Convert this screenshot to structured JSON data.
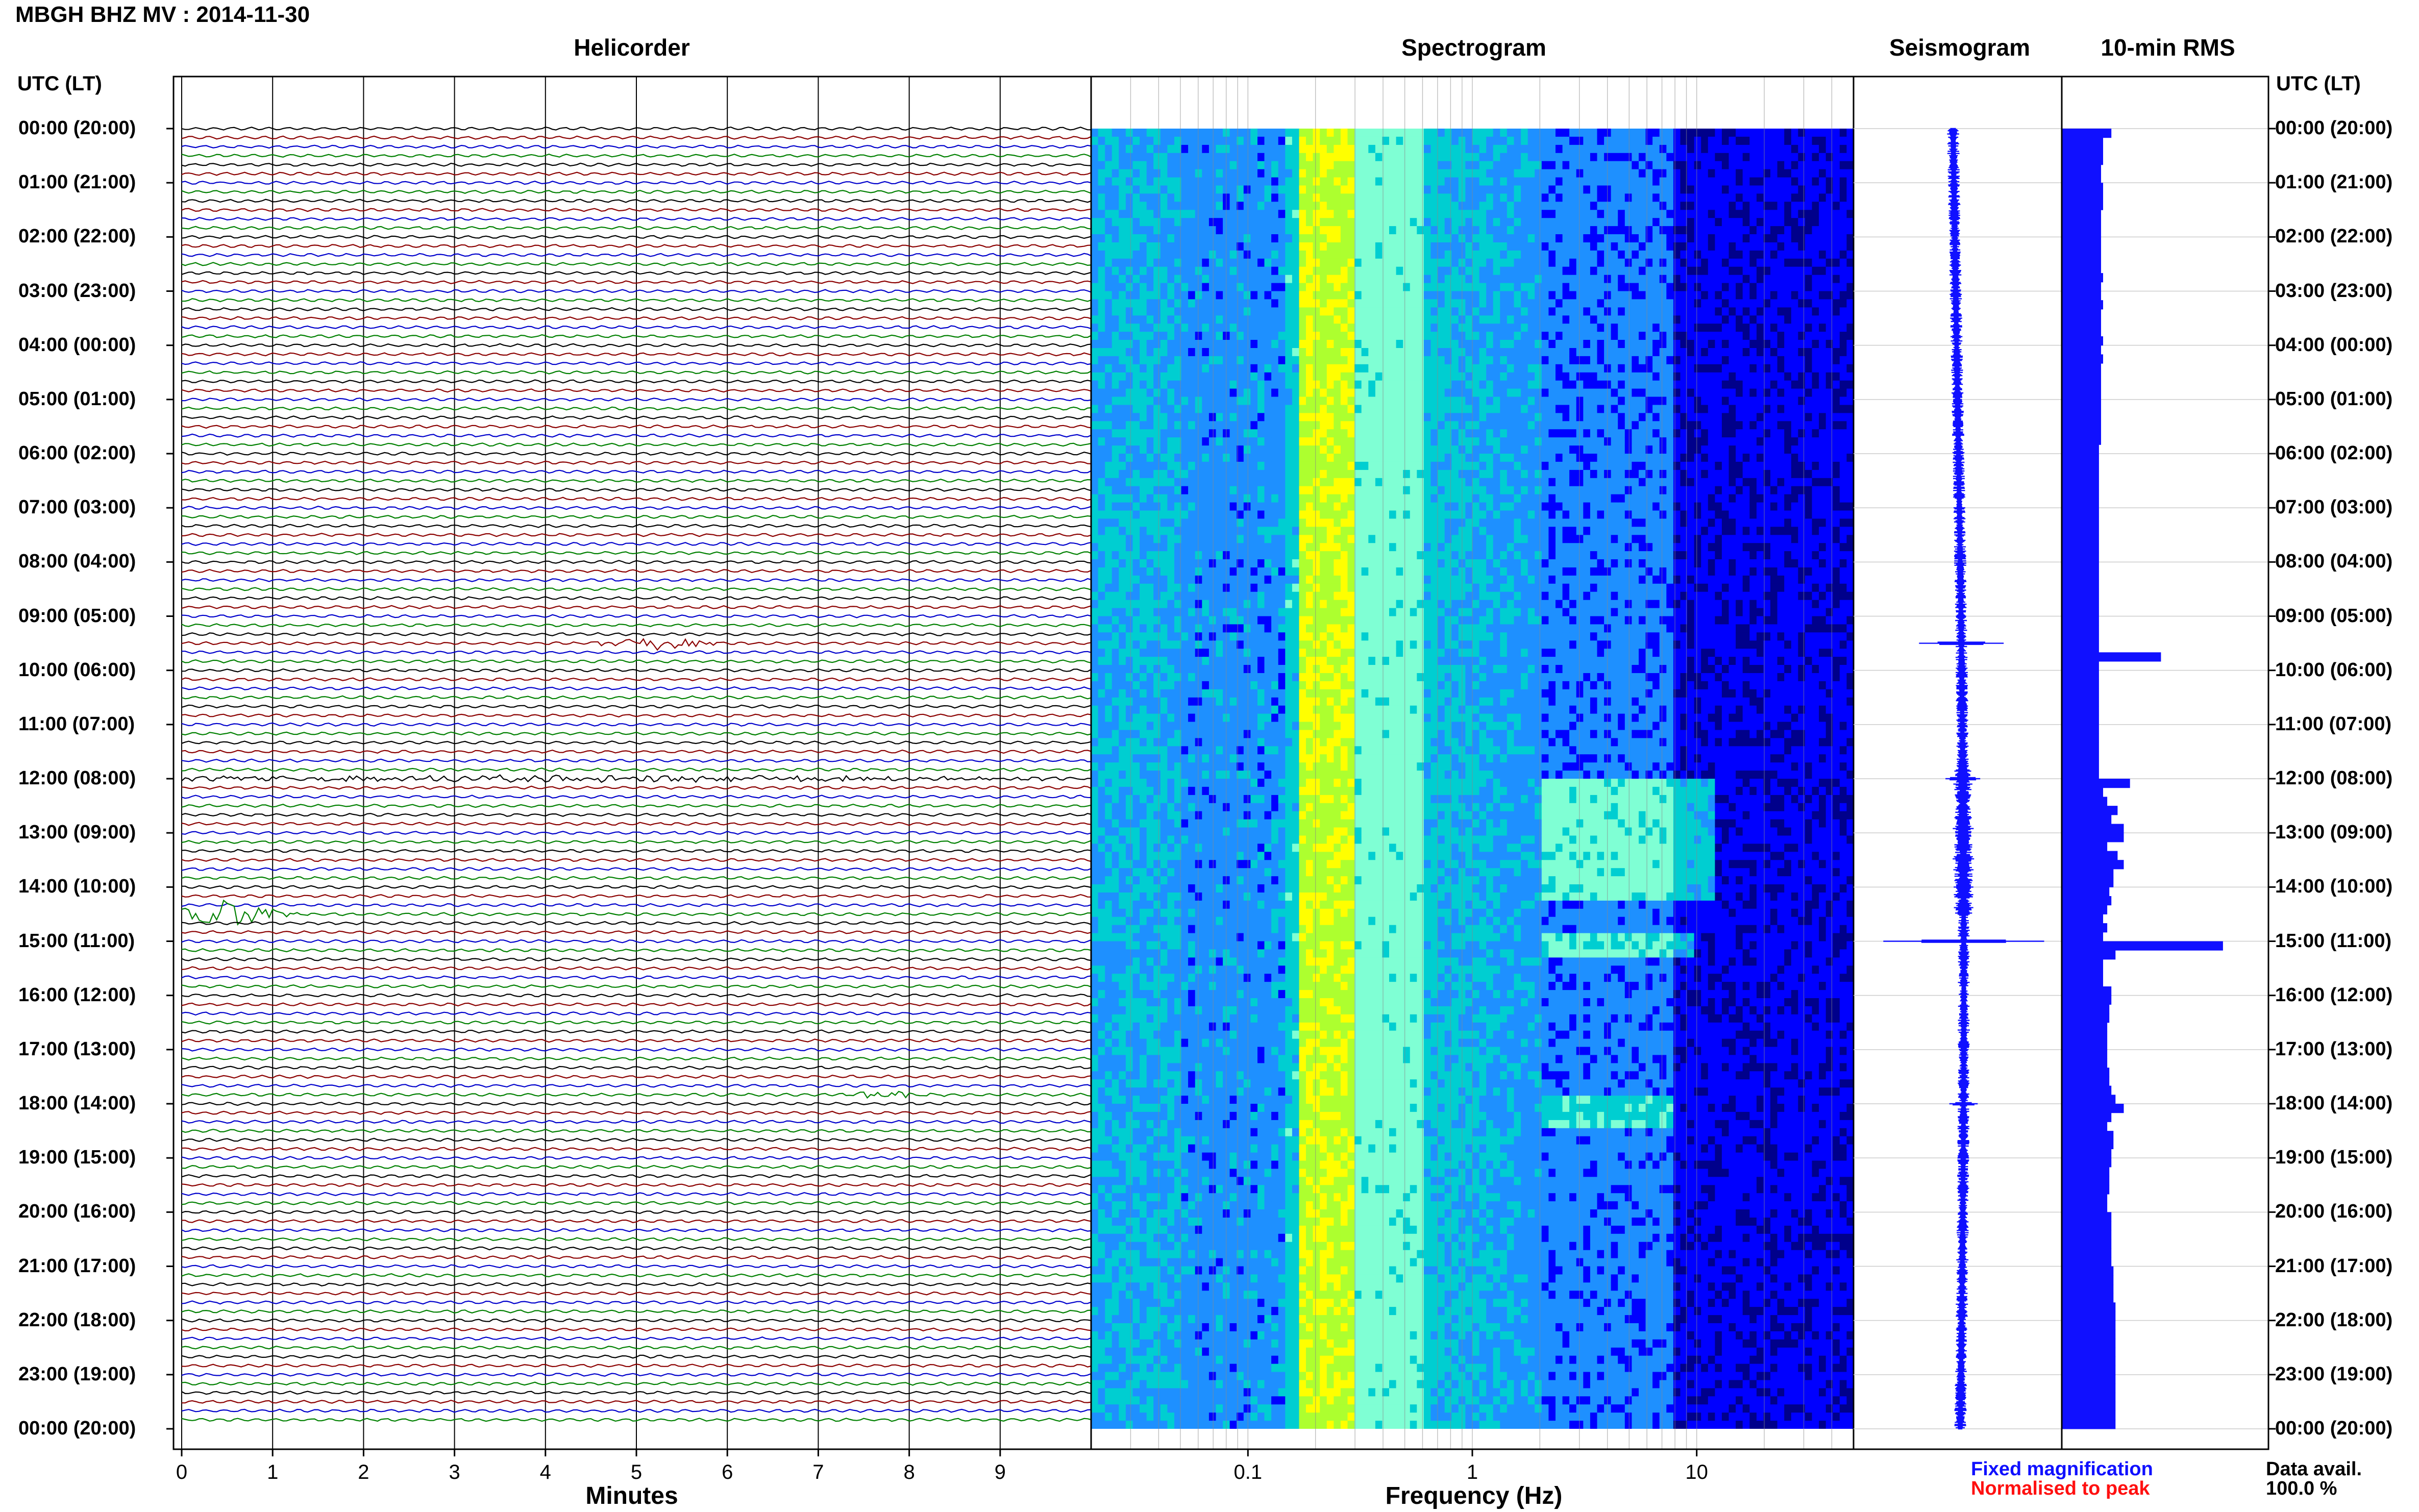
{
  "title": "MBGH BHZ MV : 2014-11-30",
  "panels": {
    "helicorder": "Helicorder",
    "spectrogram": "Spectrogram",
    "seismogram": "Seismogram",
    "rms": "10-min RMS"
  },
  "time_axis_header": "UTC (LT)",
  "time_labels": [
    "00:00 (20:00)",
    "01:00 (21:00)",
    "02:00 (22:00)",
    "03:00 (23:00)",
    "04:00 (00:00)",
    "05:00 (01:00)",
    "06:00 (02:00)",
    "07:00 (03:00)",
    "08:00 (04:00)",
    "09:00 (05:00)",
    "10:00 (06:00)",
    "11:00 (07:00)",
    "12:00 (08:00)",
    "13:00 (09:00)",
    "14:00 (10:00)",
    "15:00 (11:00)",
    "16:00 (12:00)",
    "17:00 (13:00)",
    "18:00 (14:00)",
    "19:00 (15:00)",
    "20:00 (16:00)",
    "21:00 (17:00)",
    "22:00 (18:00)",
    "23:00 (19:00)",
    "00:00 (20:00)"
  ],
  "legend": {
    "fixed": "Fixed magnification",
    "normalised": "Normalised to peak",
    "fixed_color": "#1010ff",
    "normalised_color": "#ff1010"
  },
  "data_avail": {
    "label": "Data avail.",
    "value": "100.0 %"
  },
  "chart_data": [
    {
      "type": "line",
      "name": "helicorder",
      "xlabel": "Minutes",
      "xticks": [
        0,
        1,
        2,
        3,
        4,
        5,
        6,
        7,
        8,
        9
      ],
      "xlim": [
        0,
        10
      ],
      "rows_per_hour": 6,
      "row_colors": [
        "#000000",
        "#8b0000",
        "#0000cc",
        "#008000"
      ],
      "events": [
        {
          "hour": 9.5,
          "minute": 5.2,
          "width_min": 0.8,
          "amplitude": "large"
        },
        {
          "hour": 14.5,
          "minute": 0.5,
          "width_min": 0.8,
          "amplitude": "very large"
        },
        {
          "hour": 12.0,
          "minute": 3.0,
          "width_min": 9.0,
          "amplitude": "moderate"
        },
        {
          "hour": 17.8,
          "minute": 7.8,
          "width_min": 0.7,
          "amplitude": "moderate"
        }
      ]
    },
    {
      "type": "heatmap",
      "name": "spectrogram",
      "xlabel": "Frequency (Hz)",
      "xscale": "log",
      "xticks": [
        "0.1",
        "1",
        "10"
      ],
      "xlim": [
        0.02,
        50
      ],
      "colormap": [
        "#00008b",
        "#0000ff",
        "#1e90ff",
        "#00ced1",
        "#7fffd4",
        "#adff2f",
        "#ffff00"
      ]
    },
    {
      "type": "line",
      "name": "seismogram",
      "spikes": [
        {
          "hour": 9.5,
          "amplitude": 0.35
        },
        {
          "hour": 15.0,
          "amplitude": 0.75
        },
        {
          "hour": 12.0,
          "amplitude": 0.12
        },
        {
          "hour": 18.0,
          "amplitude": 0.1
        }
      ]
    },
    {
      "type": "bar",
      "name": "rms",
      "orientation": "horizontal",
      "bins_per_hour": 6,
      "values": [
        0.24,
        0.2,
        0.2,
        0.2,
        0.19,
        0.19,
        0.2,
        0.2,
        0.2,
        0.19,
        0.19,
        0.19,
        0.19,
        0.19,
        0.19,
        0.19,
        0.2,
        0.19,
        0.19,
        0.2,
        0.19,
        0.19,
        0.19,
        0.2,
        0.19,
        0.2,
        0.19,
        0.19,
        0.19,
        0.19,
        0.19,
        0.19,
        0.19,
        0.19,
        0.19,
        0.18,
        0.18,
        0.18,
        0.18,
        0.18,
        0.18,
        0.18,
        0.18,
        0.18,
        0.18,
        0.18,
        0.18,
        0.18,
        0.18,
        0.18,
        0.18,
        0.18,
        0.18,
        0.18,
        0.18,
        0.18,
        0.18,
        0.18,
        0.48,
        0.18,
        0.18,
        0.18,
        0.18,
        0.18,
        0.18,
        0.18,
        0.18,
        0.18,
        0.18,
        0.18,
        0.18,
        0.18,
        0.33,
        0.2,
        0.22,
        0.27,
        0.24,
        0.3,
        0.3,
        0.22,
        0.27,
        0.3,
        0.25,
        0.25,
        0.23,
        0.24,
        0.22,
        0.2,
        0.22,
        0.2,
        0.78,
        0.26,
        0.2,
        0.2,
        0.2,
        0.24,
        0.24,
        0.23,
        0.23,
        0.22,
        0.22,
        0.22,
        0.22,
        0.22,
        0.23,
        0.23,
        0.24,
        0.26,
        0.3,
        0.24,
        0.22,
        0.25,
        0.25,
        0.24,
        0.24,
        0.23,
        0.23,
        0.23,
        0.22,
        0.22,
        0.24,
        0.24,
        0.24,
        0.24,
        0.24,
        0.24,
        0.25,
        0.25,
        0.25,
        0.25,
        0.26,
        0.26,
        0.26,
        0.26,
        0.26,
        0.26,
        0.26,
        0.26,
        0.26,
        0.26,
        0.26,
        0.26,
        0.26,
        0.26
      ]
    }
  ]
}
